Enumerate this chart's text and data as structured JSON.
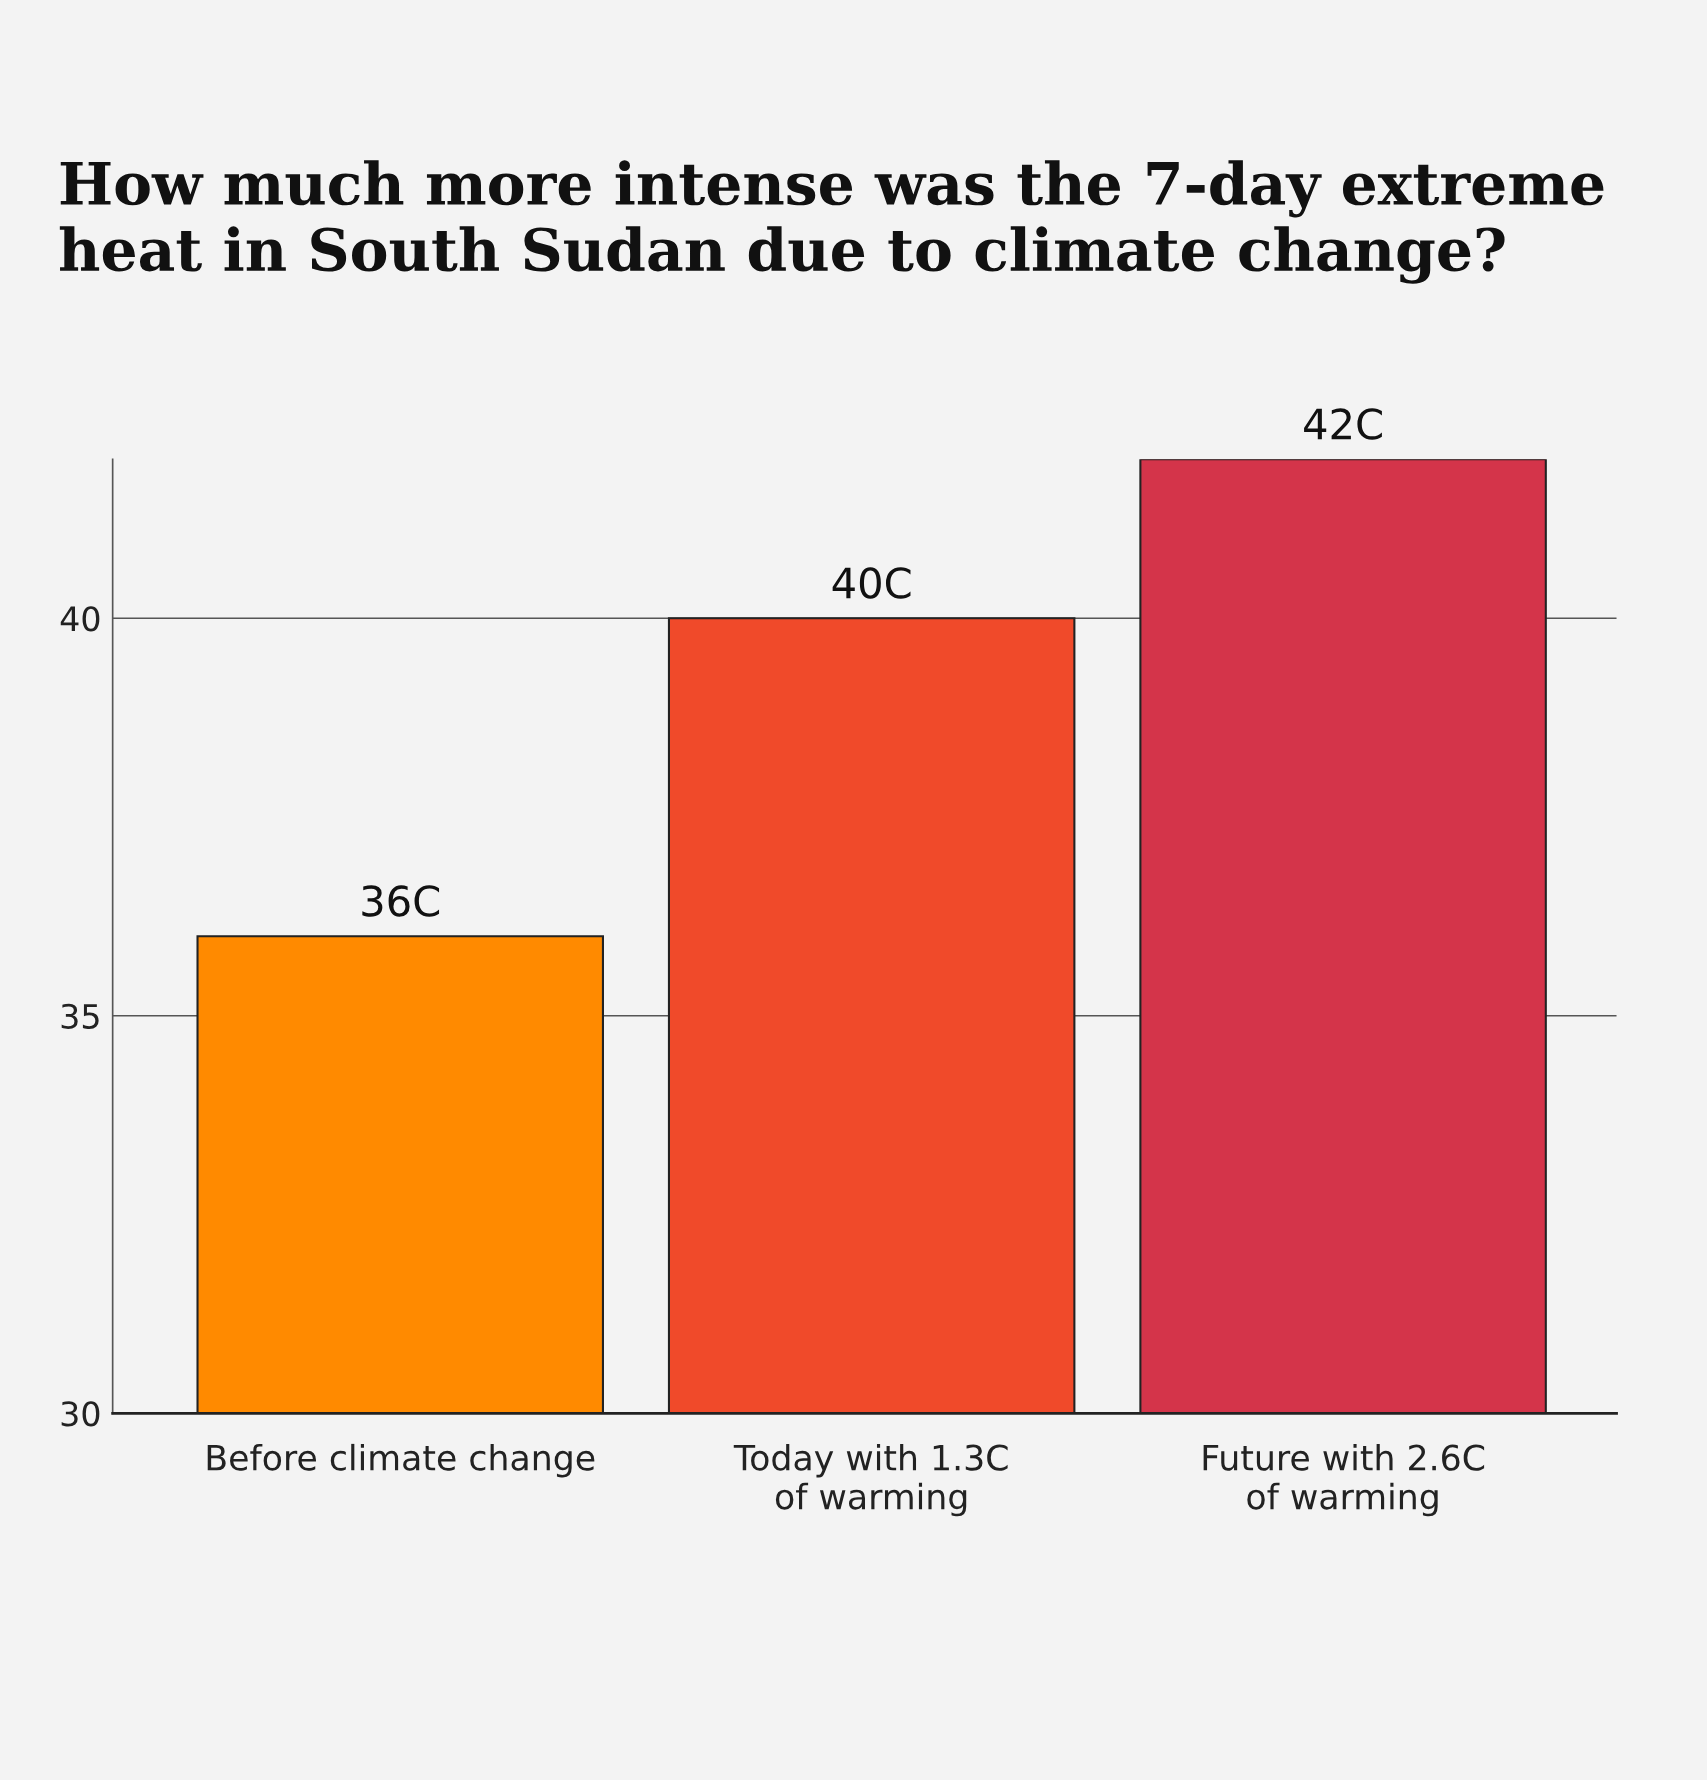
{
  "chart_data": {
    "type": "bar",
    "title": "How much more intense was the 7-day extreme heat in South Sudan due to climate change?",
    "categories": [
      "Before climate change",
      "Today with 1.3C\nof warming",
      "Future with 2.6C\nof warming"
    ],
    "values": [
      36,
      40,
      42
    ],
    "colors": [
      "#ff8a00",
      "#f04a2a",
      "#d4344a"
    ],
    "value_labels": [
      "36C",
      "40C",
      "42C"
    ],
    "ylim": [
      30,
      42
    ],
    "yticks": [
      30,
      35,
      40
    ],
    "grid": "y"
  }
}
